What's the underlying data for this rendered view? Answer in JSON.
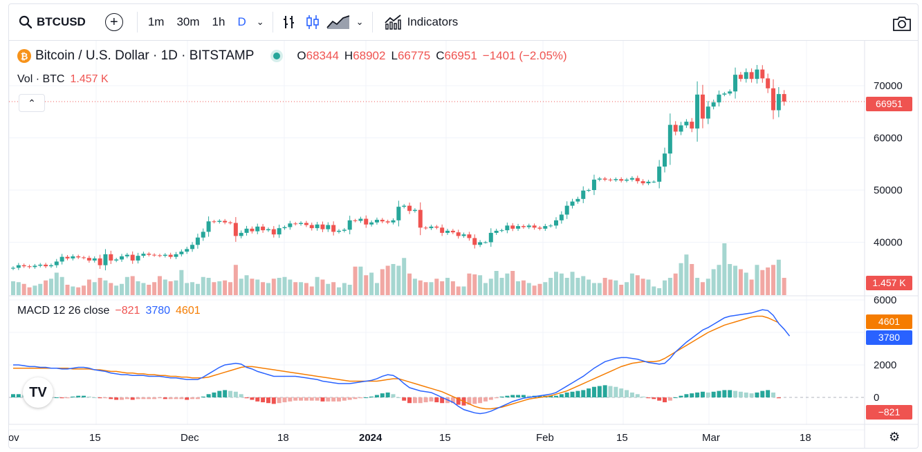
{
  "toolbar": {
    "symbol": "BTCUSD",
    "intervals": [
      "1m",
      "30m",
      "1h",
      "D"
    ],
    "active_interval": "D",
    "indicators_label": "Indicators",
    "icons": [
      "search-icon",
      "add-symbol-icon",
      "bar-chart-icon",
      "candles-icon",
      "area-chart-icon",
      "chevron-down-icon",
      "indicators-icon",
      "camera-icon"
    ]
  },
  "legend": {
    "title": "Bitcoin / U.S. Dollar · 1D · BITSTAMP",
    "o_label": "O",
    "o": "68344",
    "h_label": "H",
    "h": "68902",
    "l_label": "L",
    "l": "66775",
    "c_label": "C",
    "c": "66951",
    "change": "−1401 (−2.05%)"
  },
  "volume_legend": {
    "label": "Vol · BTC",
    "value": "1.457 K"
  },
  "macd_legend": {
    "label": "MACD 12 26 close",
    "hist": "−821",
    "macd": "3780",
    "signal": "4601"
  },
  "price_axis": {
    "ticks": [
      "70000",
      "60000",
      "50000",
      "40000"
    ],
    "last_price": "66951",
    "volume_tag": "1.457 K"
  },
  "macd_axis": {
    "ticks": [
      "6000",
      "2000",
      "0"
    ],
    "signal_tag": "4601",
    "macd_tag": "3780",
    "hist_tag": "−821"
  },
  "time_axis": {
    "ticks": [
      "Nov",
      "15",
      "Dec",
      "18",
      "2024",
      "15",
      "Feb",
      "15",
      "Mar",
      "18"
    ],
    "bold_tick": "2024"
  },
  "colors": {
    "up": "#26a69a",
    "down": "#ef5350",
    "macd": "#2962ff",
    "signal": "#f57c00",
    "vol_up": "#a5d6d0",
    "vol_down": "#f1a7a3"
  },
  "chart_data": {
    "type": "candlestick",
    "price_range": [
      35000,
      72000
    ],
    "candles": [
      [
        34950,
        35100
      ],
      [
        35100,
        35600
      ],
      [
        35600,
        35400
      ],
      [
        35400,
        35250
      ],
      [
        35250,
        35500
      ],
      [
        35500,
        35700
      ],
      [
        35700,
        35400
      ],
      [
        35400,
        35600
      ],
      [
        35600,
        36300
      ],
      [
        36300,
        37200
      ],
      [
        37200,
        36900
      ],
      [
        36900,
        37300
      ],
      [
        37300,
        37100
      ],
      [
        37100,
        37000
      ],
      [
        37000,
        36500
      ],
      [
        36500,
        36900
      ],
      [
        36900,
        35600
      ],
      [
        35600,
        37700
      ],
      [
        37700,
        36500
      ],
      [
        36500,
        36700
      ],
      [
        36700,
        37300
      ],
      [
        37300,
        37600
      ],
      [
        37600,
        36500
      ],
      [
        36500,
        37400
      ],
      [
        37400,
        37800
      ],
      [
        37800,
        37600
      ],
      [
        37600,
        37500
      ],
      [
        37500,
        37400
      ],
      [
        37400,
        37600
      ],
      [
        37600,
        37200
      ],
      [
        37200,
        37700
      ],
      [
        37700,
        38200
      ],
      [
        38200,
        38700
      ],
      [
        38700,
        39500
      ],
      [
        39500,
        40900
      ],
      [
        40900,
        42000
      ],
      [
        42000,
        44000
      ],
      [
        44000,
        43900
      ],
      [
        43900,
        44100
      ],
      [
        44100,
        43800
      ],
      [
        43800,
        43700
      ],
      [
        43700,
        41200
      ],
      [
        41200,
        41800
      ],
      [
        41800,
        42600
      ],
      [
        42600,
        42100
      ],
      [
        42100,
        43000
      ],
      [
        43000,
        42300
      ],
      [
        42300,
        42500
      ],
      [
        42500,
        41500
      ],
      [
        41500,
        42700
      ],
      [
        42700,
        42900
      ],
      [
        42900,
        43600
      ],
      [
        43600,
        43500
      ],
      [
        43500,
        43700
      ],
      [
        43700,
        43300
      ],
      [
        43300,
        42700
      ],
      [
        42700,
        43400
      ],
      [
        43400,
        42500
      ],
      [
        42500,
        43300
      ],
      [
        43300,
        42000
      ],
      [
        42000,
        42200
      ],
      [
        42200,
        42400
      ],
      [
        42400,
        44200
      ],
      [
        44200,
        44100
      ],
      [
        44100,
        44500
      ],
      [
        44500,
        43400
      ],
      [
        43400,
        43800
      ],
      [
        43800,
        44300
      ],
      [
        44300,
        44000
      ],
      [
        44000,
        43800
      ],
      [
        43800,
        44200
      ],
      [
        44200,
        46800
      ],
      [
        46800,
        47000
      ],
      [
        47000,
        46000
      ],
      [
        46000,
        46200
      ],
      [
        46200,
        42800
      ],
      [
        42800,
        42700
      ],
      [
        42700,
        43000
      ],
      [
        43000,
        42800
      ],
      [
        42800,
        41800
      ],
      [
        41800,
        42200
      ],
      [
        42200,
        41900
      ],
      [
        41900,
        41200
      ],
      [
        41200,
        41500
      ],
      [
        41500,
        40800
      ],
      [
        40800,
        39500
      ],
      [
        39500,
        40000
      ],
      [
        40000,
        40000
      ],
      [
        40000,
        41800
      ],
      [
        41800,
        42200
      ],
      [
        42200,
        42300
      ],
      [
        42300,
        43200
      ],
      [
        43200,
        42600
      ],
      [
        42600,
        43100
      ],
      [
        43100,
        42900
      ],
      [
        42900,
        43200
      ],
      [
        43200,
        42800
      ],
      [
        42800,
        42600
      ],
      [
        42600,
        43100
      ],
      [
        43100,
        43200
      ],
      [
        43200,
        44200
      ],
      [
        44200,
        45300
      ],
      [
        45300,
        47000
      ],
      [
        47000,
        47800
      ],
      [
        47800,
        48300
      ],
      [
        48300,
        49900
      ],
      [
        49900,
        50000
      ],
      [
        50000,
        52000
      ],
      [
        52000,
        52200
      ],
      [
        52200,
        52000
      ],
      [
        52000,
        51900
      ],
      [
        51900,
        52100
      ],
      [
        52100,
        51800
      ],
      [
        51800,
        52000
      ],
      [
        52000,
        52300
      ],
      [
        52300,
        51700
      ],
      [
        51700,
        51300
      ],
      [
        51300,
        51600
      ],
      [
        51600,
        51600
      ],
      [
        51600,
        54500
      ],
      [
        54500,
        57000
      ],
      [
        57000,
        62500
      ],
      [
        62500,
        61200
      ],
      [
        61200,
        62400
      ],
      [
        62400,
        63100
      ],
      [
        63100,
        61800
      ],
      [
        61800,
        68300
      ],
      [
        68300,
        63700
      ],
      [
        63700,
        66000
      ],
      [
        66000,
        66800
      ],
      [
        66800,
        68300
      ],
      [
        68300,
        68500
      ],
      [
        68500,
        68900
      ],
      [
        68900,
        72100
      ],
      [
        72100,
        71300
      ],
      [
        71300,
        72600
      ],
      [
        72600,
        71300
      ],
      [
        71300,
        73100
      ],
      [
        73100,
        71400
      ],
      [
        71400,
        69500
      ],
      [
        69500,
        65300
      ],
      [
        65300,
        68400
      ],
      [
        68400,
        66950
      ]
    ],
    "volume_range": [
      0,
      12000
    ],
    "volume": [
      3200,
      3000,
      2600,
      1800,
      2200,
      2600,
      3400,
      3800,
      5200,
      4200,
      2400,
      2000,
      1800,
      2200,
      3600,
      3000,
      4000,
      3400,
      2800,
      2200,
      2600,
      4200,
      4400,
      3200,
      2800,
      2400,
      3000,
      4400,
      3600,
      3200,
      3400,
      5800,
      2800,
      3000,
      2600,
      4200,
      4000,
      3000,
      3200,
      3400,
      3000,
      7000,
      3800,
      4600,
      3800,
      3600,
      3000,
      2800,
      3800,
      4000,
      4200,
      3600,
      3000,
      3000,
      2800,
      2000,
      4200,
      3600,
      2600,
      3000,
      1800,
      2800,
      2400,
      6600,
      6600,
      4600,
      5200,
      2800,
      6000,
      6800,
      7200,
      6800,
      8600,
      5000,
      3800,
      3400,
      3000,
      3000,
      3800,
      3200,
      4000,
      3200,
      2000,
      2000,
      5000,
      4800,
      4600,
      2800,
      3800,
      5600,
      4000,
      5000,
      5600,
      3200,
      3400,
      2800,
      2200,
      2600,
      3000,
      4000,
      5400,
      5000,
      4000,
      5400,
      4000,
      4400,
      3600,
      2800,
      2800,
      4000,
      3600,
      3400,
      2400,
      3000,
      5000,
      4600,
      3800,
      3600,
      2000,
      1600,
      3400,
      4000,
      5000,
      7400,
      9400,
      7200,
      4000,
      3000,
      3800,
      6000,
      7000,
      12000,
      7200,
      6800,
      6000,
      5200,
      3600,
      7000,
      5800,
      6400,
      7000,
      8200,
      4000,
      3600,
      3800
    ]
  },
  "macd_data": {
    "range": [
      -2000,
      6000
    ],
    "macd": [
      2000,
      2000,
      1950,
      1900,
      1900,
      1850,
      1850,
      1800,
      1800,
      1750,
      1750,
      1800,
      1850,
      1850,
      1800,
      1700,
      1650,
      1600,
      1500,
      1450,
      1400,
      1400,
      1350,
      1350,
      1350,
      1300,
      1300,
      1300,
      1250,
      1200,
      1200,
      1150,
      1100,
      1100,
      1100,
      1250,
      1450,
      1650,
      1850,
      2000,
      2050,
      2100,
      2050,
      1850,
      1750,
      1600,
      1500,
      1400,
      1300,
      1300,
      1300,
      1300,
      1300,
      1250,
      1200,
      1150,
      1100,
      1000,
      950,
      900,
      850,
      850,
      850,
      900,
      950,
      1000,
      1050,
      1150,
      1300,
      1400,
      1350,
      1150,
      850,
      600,
      500,
      400,
      350,
      300,
      150,
      0,
      -150,
      -300,
      -550,
      -750,
      -850,
      -950,
      -1000,
      -950,
      -850,
      -700,
      -550,
      -400,
      -250,
      -150,
      -50,
      0,
      50,
      100,
      150,
      200,
      300,
      500,
      700,
      900,
      1100,
      1300,
      1550,
      1800,
      2000,
      2200,
      2300,
      2400,
      2450,
      2450,
      2400,
      2350,
      2250,
      2150,
      2100,
      2050,
      2100,
      2400,
      2800,
      3100,
      3400,
      3650,
      3900,
      4150,
      4300,
      4500,
      4700,
      4900,
      5000,
      5050,
      5100,
      5150,
      5200,
      5300,
      5400,
      5350,
      5050,
      4550,
      4200,
      3780
    ],
    "signal": [
      1800,
      1800,
      1800,
      1800,
      1800,
      1800,
      1800,
      1800,
      1800,
      1800,
      1800,
      1750,
      1750,
      1750,
      1750,
      1700,
      1700,
      1650,
      1600,
      1600,
      1550,
      1500,
      1500,
      1450,
      1450,
      1400,
      1400,
      1350,
      1350,
      1300,
      1300,
      1250,
      1250,
      1200,
      1200,
      1200,
      1250,
      1350,
      1450,
      1550,
      1650,
      1750,
      1850,
      1900,
      1900,
      1850,
      1800,
      1750,
      1700,
      1650,
      1600,
      1550,
      1500,
      1450,
      1400,
      1350,
      1300,
      1250,
      1200,
      1150,
      1100,
      1050,
      1000,
      1000,
      1000,
      1000,
      1000,
      1000,
      1050,
      1100,
      1150,
      1150,
      1050,
      950,
      850,
      750,
      650,
      550,
      450,
      350,
      200,
      50,
      -100,
      -250,
      -400,
      -550,
      -650,
      -700,
      -700,
      -650,
      -600,
      -500,
      -400,
      -300,
      -200,
      -100,
      -50,
      0,
      50,
      100,
      200,
      300,
      400,
      550,
      700,
      850,
      1000,
      1150,
      1300,
      1450,
      1600,
      1750,
      1900,
      2000,
      2100,
      2150,
      2200,
      2200,
      2200,
      2250,
      2400,
      2600,
      2800,
      3000,
      3200,
      3400,
      3600,
      3800,
      4000,
      4150,
      4300,
      4450,
      4550,
      4650,
      4750,
      4850,
      4950,
      5000,
      5000,
      4900,
      4750,
      4601
    ],
    "last_hist": -821
  }
}
